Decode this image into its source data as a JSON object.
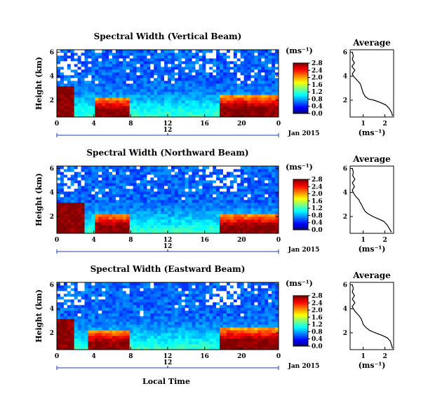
{
  "figure": {
    "date_label": "Jan 2015",
    "xaxis_label": "Local Time",
    "bottom_bracket_label": "12"
  },
  "chart_data": [
    {
      "type": "heatmap",
      "title": "Spectral Width (Vertical Beam)",
      "ylabel": "Height (km)",
      "xlabel": "Local Time",
      "x_ticks": [
        "0",
        "4",
        "8",
        "12",
        "16",
        "20",
        "0"
      ],
      "y_ticks": [
        "2",
        "4",
        "6"
      ],
      "xlim": [
        0,
        24
      ],
      "ylim": [
        0.6,
        6.2
      ],
      "colorbar_label": "(ms⁻¹)",
      "colorbar_ticks": [
        "0.0",
        "0.4",
        "0.8",
        "1.2",
        "1.6",
        "2.0",
        "2.4",
        "2.8"
      ],
      "colorbar_range": [
        0,
        2.8
      ],
      "date_label": "Jan 2015",
      "time_bracket_label": "12",
      "high_width_periods": [
        {
          "start": 0,
          "end": 2,
          "height_top": 4.5
        },
        {
          "start": 4,
          "end": 8,
          "height_top": 2.2
        },
        {
          "start": 17.5,
          "end": 24,
          "height_top": 2.4
        }
      ]
    },
    {
      "type": "heatmap",
      "title": "Spectral Width (Northward Beam)",
      "ylabel": "Height (km)",
      "xlabel": "Local Time",
      "x_ticks": [
        "0",
        "4",
        "8",
        "12",
        "16",
        "20",
        "0"
      ],
      "y_ticks": [
        "2",
        "4",
        "6"
      ],
      "xlim": [
        0,
        24
      ],
      "ylim": [
        0.6,
        6.2
      ],
      "colorbar_label": "(ms⁻¹)",
      "colorbar_ticks": [
        "0.0",
        "0.4",
        "0.8",
        "1.2",
        "1.6",
        "2.0",
        "2.4",
        "2.8"
      ],
      "colorbar_range": [
        0,
        2.8
      ],
      "date_label": "Jan 2015",
      "time_bracket_label": "12",
      "high_width_periods": [
        {
          "start": 0,
          "end": 3,
          "height_top": 4.8
        },
        {
          "start": 4,
          "end": 8,
          "height_top": 2.2
        },
        {
          "start": 17.5,
          "end": 24,
          "height_top": 2.2
        }
      ]
    },
    {
      "type": "heatmap",
      "title": "Spectral Width (Eastward Beam)",
      "ylabel": "Height (km)",
      "xlabel": "Local Time",
      "x_ticks": [
        "0",
        "4",
        "8",
        "12",
        "16",
        "20",
        "0"
      ],
      "y_ticks": [
        "2",
        "4",
        "6"
      ],
      "xlim": [
        0,
        24
      ],
      "ylim": [
        0.6,
        6.2
      ],
      "colorbar_label": "(ms⁻¹)",
      "colorbar_ticks": [
        "0.0",
        "0.4",
        "0.8",
        "1.2",
        "1.6",
        "2.0",
        "2.4",
        "2.8"
      ],
      "colorbar_range": [
        0,
        2.8
      ],
      "date_label": "Jan 2015",
      "time_bracket_label": "12",
      "high_width_periods": [
        {
          "start": 0,
          "end": 2,
          "height_top": 4.5
        },
        {
          "start": 3.5,
          "end": 8,
          "height_top": 2.2
        },
        {
          "start": 17.5,
          "end": 24,
          "height_top": 2.4
        }
      ]
    },
    {
      "type": "line",
      "title": "Average",
      "xlabel": "(ms⁻¹)",
      "x_ticks": [
        "1",
        "2"
      ],
      "y_ticks": [
        "2",
        "4",
        "6"
      ],
      "xlim": [
        0.4,
        2.4
      ],
      "ylim": [
        0.6,
        6.2
      ],
      "x": [
        2.35,
        2.3,
        2.2,
        2.05,
        1.8,
        1.5,
        1.25,
        1.1,
        1.0,
        0.95,
        0.9,
        0.85,
        0.75,
        0.65,
        0.55,
        0.5,
        0.62,
        0.48,
        0.6,
        0.5,
        0.55,
        0.5
      ],
      "y": [
        0.7,
        1.0,
        1.3,
        1.6,
        1.8,
        2.0,
        2.1,
        2.3,
        2.6,
        2.9,
        3.2,
        3.4,
        3.6,
        3.8,
        4.0,
        4.2,
        4.5,
        4.8,
        5.1,
        5.4,
        5.7,
        6.0
      ]
    },
    {
      "type": "line",
      "title": "Average",
      "xlabel": "(ms⁻¹)",
      "x_ticks": [
        "1",
        "2"
      ],
      "y_ticks": [
        "2",
        "4",
        "6"
      ],
      "xlim": [
        0.4,
        2.4
      ],
      "ylim": [
        0.6,
        6.2
      ],
      "x": [
        2.3,
        2.2,
        2.1,
        1.95,
        1.7,
        1.45,
        1.25,
        1.1,
        1.0,
        0.92,
        0.85,
        0.8,
        0.7,
        0.6,
        0.55,
        0.5,
        0.6,
        0.5,
        0.62,
        0.52,
        0.55,
        0.5
      ],
      "y": [
        0.7,
        1.0,
        1.3,
        1.6,
        1.8,
        2.0,
        2.2,
        2.4,
        2.7,
        3.0,
        3.2,
        3.4,
        3.6,
        3.8,
        4.0,
        4.2,
        4.5,
        4.8,
        5.1,
        5.4,
        5.7,
        6.0
      ]
    },
    {
      "type": "line",
      "title": "Average",
      "xlabel": "(ms⁻¹)",
      "x_ticks": [
        "1",
        "2"
      ],
      "y_ticks": [
        "2",
        "4",
        "6"
      ],
      "xlim": [
        0.4,
        2.4
      ],
      "ylim": [
        0.6,
        6.2
      ],
      "x": [
        2.35,
        2.3,
        2.25,
        2.1,
        1.85,
        1.55,
        1.3,
        1.15,
        1.0,
        0.95,
        0.9,
        0.82,
        0.72,
        0.62,
        0.55,
        0.5,
        0.62,
        0.5,
        0.6,
        0.5,
        0.55,
        0.5
      ],
      "y": [
        0.7,
        1.0,
        1.3,
        1.6,
        1.8,
        2.0,
        2.2,
        2.4,
        2.7,
        3.0,
        3.2,
        3.4,
        3.6,
        3.8,
        4.0,
        4.2,
        4.5,
        4.8,
        5.1,
        5.4,
        5.7,
        6.0
      ]
    }
  ]
}
